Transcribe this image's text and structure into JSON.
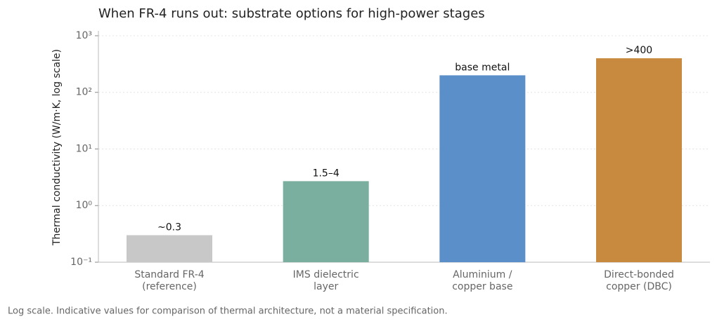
{
  "chart_data": {
    "type": "bar",
    "title": "When FR-4 runs out: substrate options for high-power stages",
    "y_label": "Thermal conductivity (W/m·K, log scale)",
    "footnote": "Log scale. Indicative values for comparison of thermal architecture, not a material specification.",
    "categories": [
      "Standard FR-4\n(reference)",
      "IMS dielectric\nlayer",
      "Aluminium /\ncopper base",
      "Direct-bonded\ncopper (DBC)"
    ],
    "values": [
      0.3,
      2.7,
      200,
      400
    ],
    "value_labels": [
      "~0.3",
      "1.5–4",
      "base metal",
      ">400"
    ],
    "colors": [
      "#c8c8c8",
      "#7aaf9f",
      "#5b8fc9",
      "#c88a3e"
    ],
    "log_scale": true,
    "ylim": [
      0.1,
      1220
    ],
    "yticks": [
      {
        "value": 0.1,
        "label": "10⁻¹"
      },
      {
        "value": 1,
        "label": "10⁰"
      },
      {
        "value": 10,
        "label": "10¹"
      },
      {
        "value": 100,
        "label": "10²"
      },
      {
        "value": 1000,
        "label": "10³"
      }
    ],
    "grid": true
  }
}
